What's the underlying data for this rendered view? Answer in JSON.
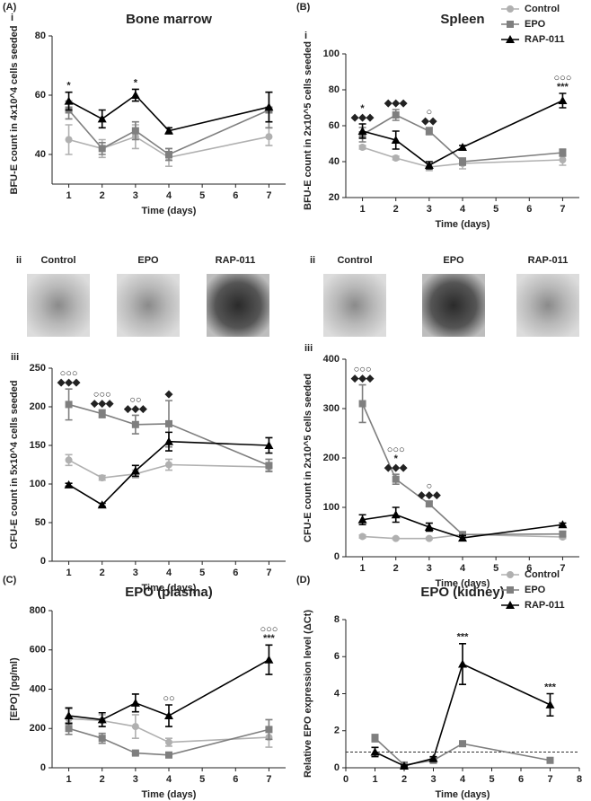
{
  "chart_data": [
    {
      "type": "line",
      "panel": "(A)",
      "sublabel": "i",
      "title": "Bone marrow",
      "x_label": "Time (days)",
      "y_label": "BFU-E count in 4x10^4 cells seeded",
      "x": [
        1,
        2,
        3,
        4,
        7
      ],
      "xlim": [
        0.5,
        7.5
      ],
      "xticks": [
        1,
        2,
        3,
        4,
        5,
        6,
        7
      ],
      "ylim": [
        30,
        80
      ],
      "yticks": [
        40,
        60,
        80
      ],
      "legend": false,
      "series": [
        {
          "name": "Control",
          "color": "#b0b0b0",
          "marker": "circle",
          "values": [
            45,
            42,
            46,
            39,
            46
          ],
          "errors": [
            5,
            3,
            4,
            3,
            3
          ]
        },
        {
          "name": "EPO",
          "color": "#7f7f7f",
          "marker": "square",
          "values": [
            55,
            42,
            48,
            40,
            55
          ],
          "errors": [
            3,
            2,
            3,
            2,
            6
          ]
        },
        {
          "name": "RAP-011",
          "color": "#000000",
          "marker": "triangle",
          "values": [
            58,
            52,
            60,
            48,
            56
          ],
          "errors": [
            3,
            3,
            2,
            1,
            5
          ]
        }
      ],
      "annotations": [
        {
          "x": 1,
          "lines": [
            "*"
          ]
        },
        {
          "x": 3,
          "lines": [
            "*"
          ]
        }
      ]
    },
    {
      "type": "line",
      "panel": "(B)",
      "sublabel": "i",
      "title": "Spleen",
      "x_label": "Time (days)",
      "y_label": "BFU-E count in 2x10^5 cells seeded",
      "x": [
        1,
        2,
        3,
        4,
        7
      ],
      "xlim": [
        0.5,
        7.5
      ],
      "xticks": [
        1,
        2,
        3,
        4,
        5,
        6,
        7
      ],
      "ylim": [
        20,
        100
      ],
      "yticks": [
        20,
        40,
        60,
        80,
        100
      ],
      "legend": true,
      "series": [
        {
          "name": "Control",
          "color": "#b0b0b0",
          "marker": "circle",
          "values": [
            48,
            42,
            37,
            39,
            41
          ],
          "errors": [
            1,
            1,
            2,
            3,
            3
          ]
        },
        {
          "name": "EPO",
          "color": "#7f7f7f",
          "marker": "square",
          "values": [
            55,
            66,
            57,
            40,
            45
          ],
          "errors": [
            4,
            3,
            2,
            2,
            2
          ]
        },
        {
          "name": "RAP-011",
          "color": "#000000",
          "marker": "triangle",
          "values": [
            57,
            52,
            38,
            48,
            74
          ],
          "errors": [
            4,
            5,
            2,
            1,
            4
          ]
        }
      ],
      "annotations": [
        {
          "x": 1,
          "lines": [
            "*",
            "◆◆◆"
          ]
        },
        {
          "x": 2,
          "lines": [
            "◆◆◆"
          ]
        },
        {
          "x": 3,
          "lines": [
            "○",
            "◆◆"
          ]
        },
        {
          "x": 7,
          "lines": [
            "○○○",
            "***"
          ]
        }
      ]
    },
    {
      "type": "line",
      "panel": null,
      "sublabel": "iii",
      "title": null,
      "x_label": "Time (days)",
      "y_label": "CFU-E count in 5x10^4 cells seeded",
      "x": [
        1,
        2,
        3,
        4,
        7
      ],
      "xlim": [
        0.5,
        7.5
      ],
      "xticks": [
        1,
        2,
        3,
        4,
        5,
        6,
        7
      ],
      "ylim": [
        0,
        250
      ],
      "yticks": [
        0,
        50,
        100,
        150,
        200,
        250
      ],
      "legend": false,
      "series": [
        {
          "name": "Control",
          "color": "#b0b0b0",
          "marker": "circle",
          "values": [
            131,
            108,
            113,
            125,
            122
          ],
          "errors": [
            7,
            3,
            5,
            7,
            5
          ]
        },
        {
          "name": "EPO",
          "color": "#7f7f7f",
          "marker": "square",
          "values": [
            203,
            191,
            177,
            178,
            124
          ],
          "errors": [
            20,
            5,
            12,
            30,
            8
          ]
        },
        {
          "name": "RAP-011",
          "color": "#000000",
          "marker": "triangle",
          "values": [
            99,
            73,
            117,
            155,
            150
          ],
          "errors": [
            2,
            2,
            7,
            12,
            10
          ]
        }
      ],
      "annotations": [
        {
          "x": 1,
          "lines": [
            "○○○",
            "◆◆◆"
          ]
        },
        {
          "x": 2,
          "lines": [
            "○○○",
            "◆◆◆"
          ]
        },
        {
          "x": 3,
          "lines": [
            "○○",
            "◆◆◆"
          ]
        },
        {
          "x": 4,
          "lines": [
            "◆"
          ]
        }
      ]
    },
    {
      "type": "line",
      "panel": null,
      "sublabel": "iii",
      "title": null,
      "x_label": "Time (days)",
      "y_label": "CFU-E count in 2x10^5 cells seeded",
      "x": [
        1,
        2,
        3,
        4,
        7
      ],
      "xlim": [
        0.5,
        7.5
      ],
      "xticks": [
        1,
        2,
        3,
        4,
        5,
        6,
        7
      ],
      "ylim": [
        0,
        400
      ],
      "yticks": [
        0,
        100,
        200,
        300,
        400
      ],
      "legend": false,
      "series": [
        {
          "name": "Control",
          "color": "#b0b0b0",
          "marker": "circle",
          "values": [
            41,
            37,
            37,
            45,
            40
          ],
          "errors": [
            3,
            2,
            2,
            3,
            3
          ]
        },
        {
          "name": "EPO",
          "color": "#7f7f7f",
          "marker": "square",
          "values": [
            310,
            157,
            107,
            45,
            46
          ],
          "errors": [
            38,
            10,
            5,
            5,
            5
          ]
        },
        {
          "name": "RAP-011",
          "color": "#000000",
          "marker": "triangle",
          "values": [
            75,
            85,
            60,
            38,
            65
          ],
          "errors": [
            10,
            15,
            8,
            5,
            3
          ]
        }
      ],
      "annotations": [
        {
          "x": 1,
          "lines": [
            "○○○",
            "◆◆◆"
          ]
        },
        {
          "x": 2,
          "lines": [
            "○○○",
            "*",
            "◆◆◆"
          ]
        },
        {
          "x": 3,
          "lines": [
            "○",
            "◆◆◆"
          ]
        }
      ]
    },
    {
      "type": "line",
      "panel": "(C)",
      "sublabel": null,
      "title": "EPO (plasma)",
      "x_label": "Time (days)",
      "y_label": "[EPO] (pg/ml)",
      "x": [
        1,
        2,
        3,
        4,
        7
      ],
      "xlim": [
        0.5,
        7.5
      ],
      "xticks": [
        1,
        2,
        3,
        4,
        5,
        6,
        7
      ],
      "ylim": [
        0,
        800
      ],
      "yticks": [
        0,
        200,
        400,
        600,
        800
      ],
      "legend": false,
      "series": [
        {
          "name": "Control",
          "color": "#b0b0b0",
          "marker": "circle",
          "values": [
            250,
            240,
            210,
            130,
            155
          ],
          "errors": [
            50,
            30,
            60,
            20,
            50
          ]
        },
        {
          "name": "EPO",
          "color": "#7f7f7f",
          "marker": "square",
          "values": [
            200,
            150,
            75,
            65,
            195
          ],
          "errors": [
            30,
            25,
            8,
            5,
            50
          ]
        },
        {
          "name": "RAP-011",
          "color": "#000000",
          "marker": "triangle",
          "values": [
            265,
            245,
            330,
            265,
            550
          ],
          "errors": [
            40,
            35,
            45,
            55,
            75
          ]
        }
      ],
      "annotations": [
        {
          "x": 4,
          "lines": [
            "○○"
          ]
        },
        {
          "x": 7,
          "lines": [
            "○○○",
            "***"
          ]
        }
      ]
    },
    {
      "type": "line",
      "panel": "(D)",
      "sublabel": null,
      "title": "EPO (kidney)",
      "x_label": "Time (days)",
      "y_label": "Relative EPO expression level (ΔCt)",
      "x": [
        1,
        2,
        3,
        4,
        7
      ],
      "xlim": [
        0,
        8
      ],
      "xticks": [
        0,
        1,
        2,
        3,
        4,
        5,
        6,
        7,
        8
      ],
      "ylim": [
        0,
        8
      ],
      "yticks": [
        0,
        2,
        4,
        6,
        8
      ],
      "legend": true,
      "reference_line": 0.85,
      "series": [
        {
          "name": "Control",
          "color": "#b0b0b0",
          "marker": "circle",
          "values": [
            null,
            null,
            null,
            null,
            null
          ],
          "errors": [
            null,
            null,
            null,
            null,
            null
          ]
        },
        {
          "name": "EPO",
          "color": "#7f7f7f",
          "marker": "square",
          "values": [
            1.6,
            0.15,
            0.4,
            1.3,
            0.4
          ],
          "errors": [
            0.2,
            0.05,
            0.05,
            0.1,
            0.1
          ]
        },
        {
          "name": "RAP-011",
          "color": "#000000",
          "marker": "triangle",
          "values": [
            0.85,
            0.1,
            0.5,
            5.6,
            3.4
          ],
          "errors": [
            0.25,
            0.05,
            0.1,
            1.1,
            0.6
          ]
        }
      ],
      "annotations": [
        {
          "x": 4,
          "lines": [
            "***"
          ]
        },
        {
          "x": 7,
          "lines": [
            "***"
          ]
        }
      ]
    }
  ],
  "micrographs": [
    {
      "label": "ii",
      "captions": [
        "Control",
        "EPO",
        "RAP-011"
      ]
    },
    {
      "label": "ii",
      "captions": [
        "Control",
        "EPO",
        "RAP-011"
      ]
    }
  ]
}
